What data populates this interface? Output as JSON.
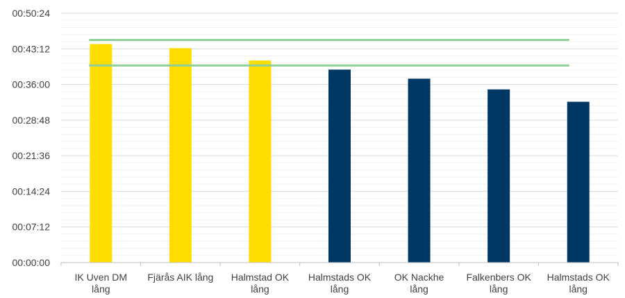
{
  "chart_data": {
    "type": "bar",
    "title": "",
    "xlabel": "",
    "ylabel": "",
    "ylim": [
      "00:00:00",
      "00:50:24"
    ],
    "y_ticks": [
      "00:00:00",
      "00:07:12",
      "00:14:24",
      "00:21:36",
      "00:28:48",
      "00:36:00",
      "00:43:12",
      "00:50:24"
    ],
    "categories": [
      [
        "IK Uven  DM",
        "lång"
      ],
      [
        "Fjärås AIK lång"
      ],
      [
        "Halmstad OK",
        "lång"
      ],
      [
        "Halmstads OK",
        "lång"
      ],
      [
        "OK Nackhe",
        "lång"
      ],
      [
        "Falkenbers OK",
        "lång"
      ],
      [
        "Halmstads OK",
        "lång"
      ]
    ],
    "values": [
      "00:44:10",
      "00:43:20",
      "00:40:50",
      "00:39:00",
      "00:37:10",
      "00:35:00",
      "00:32:30"
    ],
    "bar_colors": [
      "#FFDD00",
      "#FFDD00",
      "#FFDD00",
      "#003865",
      "#003865",
      "#003865",
      "#003865"
    ],
    "reference_lines": [
      "00:45:00",
      "00:39:50"
    ],
    "reference_line_color": "#8ECF9A",
    "grid": true,
    "grid_color": "#D9D9D9",
    "minor_grid_color": "#EFEFEF",
    "legend": "none"
  }
}
